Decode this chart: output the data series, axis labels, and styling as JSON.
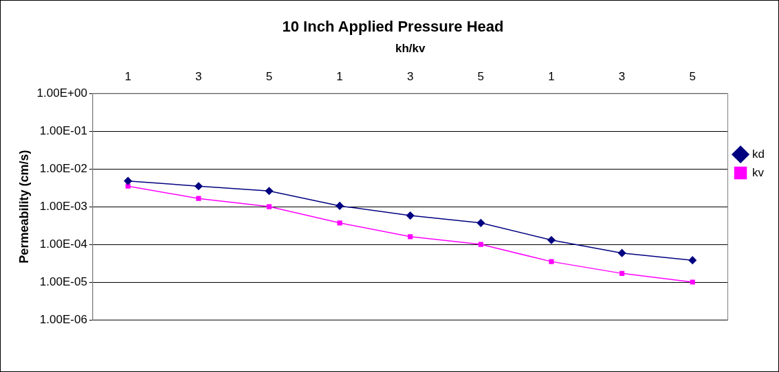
{
  "chart_data": {
    "type": "line",
    "title": "10 Inch Applied Pressure Head",
    "xlabel": "kh/kv",
    "ylabel": "Permeability (cm/s)",
    "categories": [
      "1",
      "3",
      "5",
      "1",
      "3",
      "5",
      "1",
      "3",
      "5"
    ],
    "series": [
      {
        "name": "kd",
        "color": "#000080",
        "marker": "diamond",
        "values": [
          0.0048,
          0.0035,
          0.0026,
          0.00105,
          0.00058,
          0.00037,
          0.00013,
          5.9e-05,
          3.8e-05
        ]
      },
      {
        "name": "kv",
        "color": "#ff00ff",
        "marker": "square",
        "values": [
          0.0035,
          0.00165,
          0.001,
          0.00037,
          0.00016,
          0.0001,
          3.5e-05,
          1.7e-05,
          1e-05
        ]
      }
    ],
    "log": "y",
    "ylim": [
      1e-06,
      1
    ],
    "yticks": [
      {
        "value": 1,
        "label": "1.00E+00"
      },
      {
        "value": 0.1,
        "label": "1.00E-01"
      },
      {
        "value": 0.01,
        "label": "1.00E-02"
      },
      {
        "value": 0.001,
        "label": "1.00E-03"
      },
      {
        "value": 0.0001,
        "label": "1.00E-04"
      },
      {
        "value": 1e-05,
        "label": "1.00E-05"
      },
      {
        "value": 1e-06,
        "label": "1.00E-06"
      }
    ],
    "grid": "y",
    "legend": "right",
    "line_style": "solid"
  }
}
